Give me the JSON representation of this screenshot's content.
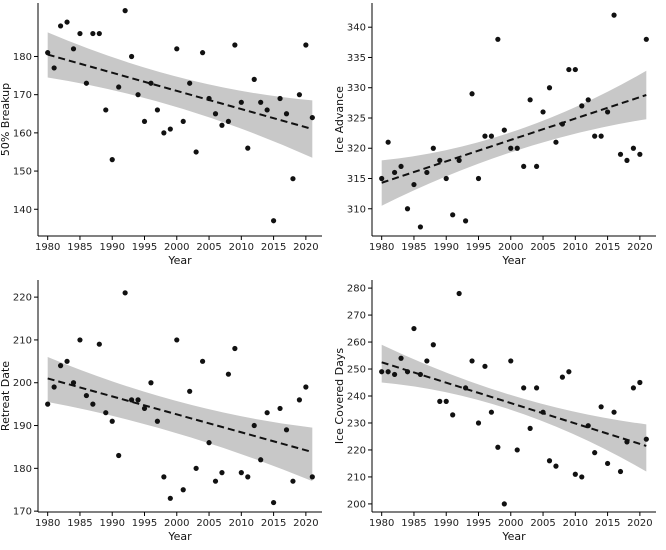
{
  "chart_data": [
    {
      "type": "scatter",
      "title": "",
      "xlabel": "Year",
      "ylabel": "50% Breakup",
      "xlim": [
        1978.5,
        2022.5
      ],
      "ylim": [
        133,
        194
      ],
      "xticks": [
        1980,
        1985,
        1990,
        1995,
        2000,
        2005,
        2010,
        2015,
        2020
      ],
      "yticks": [
        140,
        150,
        160,
        170,
        180
      ],
      "x": [
        1980,
        1981,
        1982,
        1983,
        1984,
        1985,
        1986,
        1987,
        1988,
        1989,
        1990,
        1991,
        1992,
        1993,
        1994,
        1995,
        1996,
        1997,
        1998,
        1999,
        2000,
        2001,
        2002,
        2003,
        2004,
        2005,
        2006,
        2007,
        2008,
        2009,
        2010,
        2011,
        2012,
        2013,
        2014,
        2015,
        2016,
        2017,
        2018,
        2019,
        2020,
        2021
      ],
      "y": [
        181,
        177,
        188,
        189,
        182,
        186,
        173,
        186,
        186,
        166,
        153,
        172,
        192,
        180,
        170,
        163,
        173,
        166,
        160,
        161,
        182,
        163,
        173,
        155,
        181,
        169,
        165,
        162,
        163,
        183,
        168,
        156,
        174,
        168,
        166,
        137,
        169,
        165,
        148,
        170,
        183,
        164
      ],
      "trend": {
        "start": [
          1980,
          180.5
        ],
        "end": [
          2021,
          161
        ]
      },
      "ci": {
        "upper_start": 186.3,
        "upper_mid": 174.5,
        "upper_end": 168.5,
        "lower_start": 174.5,
        "lower_mid": 166.5,
        "lower_end": 153.5
      }
    },
    {
      "type": "scatter",
      "title": "",
      "xlabel": "Year",
      "ylabel": "Ice Advance",
      "xlim": [
        1978.5,
        2022.5
      ],
      "ylim": [
        305.5,
        344
      ],
      "xticks": [
        1980,
        1985,
        1990,
        1995,
        2000,
        2005,
        2010,
        2015,
        2020
      ],
      "yticks": [
        310,
        315,
        320,
        325,
        330,
        335,
        340
      ],
      "x": [
        1980,
        1981,
        1982,
        1983,
        1984,
        1985,
        1986,
        1987,
        1988,
        1989,
        1990,
        1991,
        1992,
        1993,
        1994,
        1995,
        1996,
        1997,
        1998,
        1999,
        2000,
        2001,
        2002,
        2003,
        2004,
        2005,
        2006,
        2007,
        2008,
        2009,
        2010,
        2011,
        2012,
        2013,
        2014,
        2015,
        2016,
        2017,
        2018,
        2019,
        2020,
        2021
      ],
      "y": [
        315,
        321,
        316,
        317,
        310,
        314,
        307,
        316,
        320,
        318,
        315,
        309,
        318,
        308,
        329,
        315,
        322,
        322,
        338,
        323,
        320,
        320,
        317,
        328,
        317,
        326,
        330,
        321,
        324,
        333,
        333,
        327,
        328,
        322,
        322,
        326,
        342,
        319,
        318,
        320,
        319,
        338
      ],
      "trend": {
        "start": [
          1980,
          314.3
        ],
        "end": [
          2021,
          328.8
        ]
      },
      "ci": {
        "upper_start": 318.0,
        "upper_mid": 322.8,
        "upper_end": 332.8,
        "lower_start": 310.5,
        "lower_mid": 319.5,
        "lower_end": 324.8
      }
    },
    {
      "type": "scatter",
      "title": "",
      "xlabel": "Year",
      "ylabel": "Retreat Date",
      "xlim": [
        1978.5,
        2022.5
      ],
      "ylim": [
        169.8,
        224
      ],
      "xticks": [
        1980,
        1985,
        1990,
        1995,
        2000,
        2005,
        2010,
        2015,
        2020
      ],
      "yticks": [
        170,
        180,
        190,
        200,
        210,
        220
      ],
      "x": [
        1980,
        1981,
        1982,
        1983,
        1984,
        1985,
        1986,
        1987,
        1988,
        1989,
        1990,
        1991,
        1992,
        1993,
        1994,
        1995,
        1996,
        1997,
        1998,
        1999,
        2000,
        2001,
        2002,
        2003,
        2004,
        2005,
        2006,
        2007,
        2008,
        2009,
        2010,
        2011,
        2012,
        2013,
        2014,
        2015,
        2016,
        2017,
        2018,
        2019,
        2020,
        2021
      ],
      "y": [
        195,
        199,
        204,
        205,
        200,
        210,
        197,
        195,
        209,
        193,
        191,
        183,
        221,
        196,
        196,
        194,
        200,
        191,
        178,
        173,
        210,
        175,
        198,
        180,
        205,
        186,
        177,
        179,
        202,
        208,
        179,
        178,
        190,
        182,
        193,
        172,
        194,
        189,
        177,
        196,
        199,
        178
      ],
      "trend": {
        "start": [
          1980,
          201
        ],
        "end": [
          2021,
          183.8
        ]
      },
      "ci": {
        "upper_start": 206.0,
        "upper_mid": 195.5,
        "upper_end": 189.5,
        "lower_start": 195.5,
        "lower_mid": 188.0,
        "lower_end": 177.0
      }
    },
    {
      "type": "scatter",
      "title": "",
      "xlabel": "Year",
      "ylabel": "Ice Covered Days",
      "xlim": [
        1978.5,
        2022.5
      ],
      "ylim": [
        197,
        283
      ],
      "xticks": [
        1980,
        1985,
        1990,
        1995,
        2000,
        2005,
        2010,
        2015,
        2020
      ],
      "yticks": [
        200,
        210,
        220,
        230,
        240,
        250,
        260,
        270,
        280
      ],
      "x": [
        1980,
        1981,
        1982,
        1983,
        1984,
        1985,
        1986,
        1987,
        1988,
        1989,
        1990,
        1991,
        1992,
        1993,
        1994,
        1995,
        1996,
        1997,
        1998,
        1999,
        2000,
        2001,
        2002,
        2003,
        2004,
        2005,
        2006,
        2007,
        2008,
        2009,
        2010,
        2011,
        2012,
        2013,
        2014,
        2015,
        2016,
        2017,
        2018,
        2019,
        2020,
        2021
      ],
      "y": [
        249,
        249,
        248,
        254,
        249,
        265,
        248,
        253,
        259,
        238,
        238,
        233,
        278,
        243,
        253,
        230,
        251,
        234,
        221,
        200,
        253,
        220,
        243,
        228,
        243,
        234,
        216,
        214,
        247,
        249,
        211,
        210,
        229,
        219,
        236,
        215,
        234,
        212,
        223,
        243,
        245,
        224
      ],
      "trend": {
        "start": [
          1980,
          252.5
        ],
        "end": [
          2021,
          221.5
        ]
      },
      "ci": {
        "upper_start": 259.0,
        "upper_mid": 240.0,
        "upper_end": 229.5,
        "lower_start": 245.0,
        "lower_mid": 234.5,
        "lower_end": 212.0
      }
    }
  ]
}
